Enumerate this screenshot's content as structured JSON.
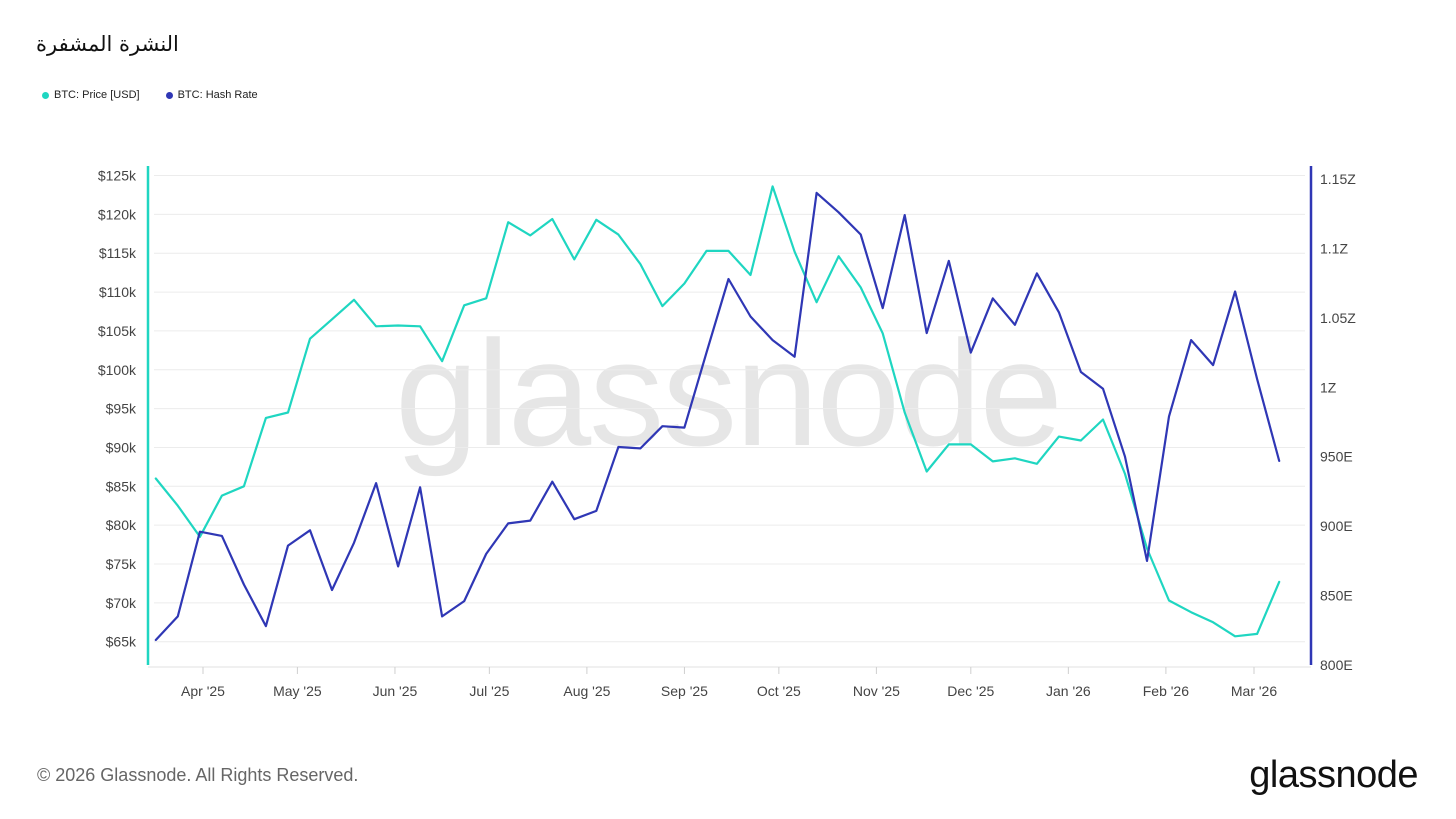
{
  "title": "النشرة المشفرة",
  "legend": [
    {
      "label": "BTC: Price [USD]",
      "color": "#1fd6c1"
    },
    {
      "label": "BTC: Hash Rate",
      "color": "#2f37b5"
    }
  ],
  "watermark": "glassnode",
  "footer": "© 2026 Glassnode. All Rights Reserved.",
  "brand": "glassnode",
  "chart_data": {
    "type": "line",
    "x_ticks": [
      "Apr '25",
      "May '25",
      "Jun '25",
      "Jul '25",
      "Aug '25",
      "Sep '25",
      "Oct '25",
      "Nov '25",
      "Dec '25",
      "Jan '26",
      "Feb '26",
      "Mar '26"
    ],
    "x_tick_dates": [
      "2025-04-01",
      "2025-05-01",
      "2025-06-01",
      "2025-07-01",
      "2025-08-01",
      "2025-09-01",
      "2025-10-01",
      "2025-11-01",
      "2025-12-01",
      "2026-01-01",
      "2026-02-01",
      "2026-03-01"
    ],
    "y_left_ticks": [
      "$65k",
      "$70k",
      "$75k",
      "$80k",
      "$85k",
      "$90k",
      "$95k",
      "$100k",
      "$105k",
      "$110k",
      "$115k",
      "$120k",
      "$125k"
    ],
    "y_left_values": [
      65000,
      70000,
      75000,
      80000,
      85000,
      90000,
      95000,
      100000,
      105000,
      110000,
      115000,
      120000,
      125000
    ],
    "y_left_range": [
      62000,
      127000
    ],
    "y_right_ticks": [
      "800E",
      "850E",
      "900E",
      "950E",
      "1Z",
      "1.05Z",
      "1.1Z",
      "1.15Z"
    ],
    "y_right_values": [
      800,
      850,
      900,
      950,
      1000,
      1050,
      1100,
      1150
    ],
    "y_right_range": [
      800,
      1150
    ],
    "grid": true,
    "series": [
      {
        "name": "BTC: Price [USD]",
        "axis": "left",
        "color": "#1fd6c1",
        "points": [
          [
            "2025-03-17",
            86000
          ],
          [
            "2025-03-24",
            82500
          ],
          [
            "2025-03-31",
            78500
          ],
          [
            "2025-04-07",
            83800
          ],
          [
            "2025-04-14",
            85000
          ],
          [
            "2025-04-21",
            93800
          ],
          [
            "2025-04-28",
            94500
          ],
          [
            "2025-05-05",
            104000
          ],
          [
            "2025-05-12",
            106500
          ],
          [
            "2025-05-19",
            109000
          ],
          [
            "2025-05-26",
            105600
          ],
          [
            "2025-06-02",
            105700
          ],
          [
            "2025-06-09",
            105600
          ],
          [
            "2025-06-16",
            101100
          ],
          [
            "2025-06-23",
            108300
          ],
          [
            "2025-06-30",
            109200
          ],
          [
            "2025-07-07",
            119000
          ],
          [
            "2025-07-14",
            117300
          ],
          [
            "2025-07-21",
            119400
          ],
          [
            "2025-07-28",
            114200
          ],
          [
            "2025-08-04",
            119300
          ],
          [
            "2025-08-11",
            117400
          ],
          [
            "2025-08-18",
            113600
          ],
          [
            "2025-08-25",
            108200
          ],
          [
            "2025-09-01",
            111100
          ],
          [
            "2025-09-08",
            115300
          ],
          [
            "2025-09-15",
            115300
          ],
          [
            "2025-09-22",
            112200
          ],
          [
            "2025-09-29",
            123600
          ],
          [
            "2025-10-06",
            115200
          ],
          [
            "2025-10-13",
            108700
          ],
          [
            "2025-10-20",
            114600
          ],
          [
            "2025-10-27",
            110600
          ],
          [
            "2025-11-03",
            104700
          ],
          [
            "2025-11-10",
            94500
          ],
          [
            "2025-11-17",
            86900
          ],
          [
            "2025-11-24",
            90400
          ],
          [
            "2025-12-01",
            90400
          ],
          [
            "2025-12-08",
            88200
          ],
          [
            "2025-12-15",
            88600
          ],
          [
            "2025-12-22",
            87900
          ],
          [
            "2025-12-29",
            91400
          ],
          [
            "2026-01-05",
            90900
          ],
          [
            "2026-01-12",
            93600
          ],
          [
            "2026-01-19",
            86600
          ],
          [
            "2026-01-26",
            77000
          ],
          [
            "2026-02-02",
            70300
          ],
          [
            "2026-02-09",
            68800
          ],
          [
            "2026-02-16",
            67500
          ],
          [
            "2026-02-23",
            65700
          ],
          [
            "2026-03-02",
            66000
          ],
          [
            "2026-03-09",
            72700
          ]
        ]
      },
      {
        "name": "BTC: Hash Rate",
        "axis": "right",
        "color": "#2f37b5",
        "points": [
          [
            "2025-03-17",
            818
          ],
          [
            "2025-03-24",
            835
          ],
          [
            "2025-03-31",
            896
          ],
          [
            "2025-04-07",
            893
          ],
          [
            "2025-04-14",
            858
          ],
          [
            "2025-04-21",
            828
          ],
          [
            "2025-04-28",
            886
          ],
          [
            "2025-05-05",
            897
          ],
          [
            "2025-05-12",
            854
          ],
          [
            "2025-05-19",
            888
          ],
          [
            "2025-05-26",
            931
          ],
          [
            "2025-06-02",
            871
          ],
          [
            "2025-06-09",
            928
          ],
          [
            "2025-06-16",
            835
          ],
          [
            "2025-06-23",
            846
          ],
          [
            "2025-06-30",
            880
          ],
          [
            "2025-07-07",
            902
          ],
          [
            "2025-07-14",
            904
          ],
          [
            "2025-07-21",
            932
          ],
          [
            "2025-07-28",
            905
          ],
          [
            "2025-08-04",
            911
          ],
          [
            "2025-08-11",
            957
          ],
          [
            "2025-08-18",
            956
          ],
          [
            "2025-08-25",
            972
          ],
          [
            "2025-09-01",
            971
          ],
          [
            "2025-09-08",
            1025
          ],
          [
            "2025-09-15",
            1078
          ],
          [
            "2025-09-22",
            1051
          ],
          [
            "2025-09-29",
            1034
          ],
          [
            "2025-10-06",
            1022
          ],
          [
            "2025-10-13",
            1140
          ],
          [
            "2025-10-20",
            1126
          ],
          [
            "2025-10-27",
            1110
          ],
          [
            "2025-11-03",
            1057
          ],
          [
            "2025-11-10",
            1124
          ],
          [
            "2025-11-17",
            1039
          ],
          [
            "2025-11-24",
            1091
          ],
          [
            "2025-12-01",
            1025
          ],
          [
            "2025-12-08",
            1064
          ],
          [
            "2025-12-15",
            1045
          ],
          [
            "2025-12-22",
            1082
          ],
          [
            "2025-12-29",
            1054
          ],
          [
            "2026-01-05",
            1011
          ],
          [
            "2026-01-12",
            999
          ],
          [
            "2026-01-19",
            950
          ],
          [
            "2026-01-26",
            875
          ],
          [
            "2026-02-02",
            979
          ],
          [
            "2026-02-09",
            1034
          ],
          [
            "2026-02-16",
            1016
          ],
          [
            "2026-02-23",
            1069
          ],
          [
            "2026-03-02",
            1006
          ],
          [
            "2026-03-09",
            947
          ]
        ]
      }
    ]
  }
}
